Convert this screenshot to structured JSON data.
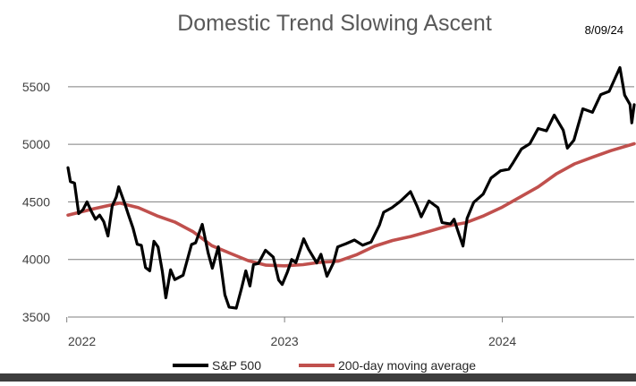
{
  "chart_data": {
    "type": "line",
    "title": "Domestic Trend Slowing Ascent",
    "date_label": "8/09/24",
    "xlabel": "",
    "ylabel": "",
    "xlim": [
      "2022-01-03",
      "2024-08-09"
    ],
    "ylim": [
      3500,
      5600
    ],
    "yticks": [
      3500,
      4000,
      4500,
      5000,
      5500
    ],
    "xtick_labels": [
      "2022",
      "2023",
      "2024"
    ],
    "grid": "horizontal",
    "legend_position": "bottom",
    "colors": {
      "sp500": "#000000",
      "ma200": "#c0504d",
      "grid": "#7f7f7f"
    },
    "series": [
      {
        "name": "S&P 500",
        "x": [
          "2022-01-03",
          "2022-01-07",
          "2022-01-14",
          "2022-01-21",
          "2022-01-28",
          "2022-02-04",
          "2022-02-11",
          "2022-02-18",
          "2022-02-25",
          "2022-03-04",
          "2022-03-11",
          "2022-03-18",
          "2022-03-25",
          "2022-03-29",
          "2022-04-08",
          "2022-04-14",
          "2022-04-22",
          "2022-04-29",
          "2022-05-06",
          "2022-05-13",
          "2022-05-20",
          "2022-05-27",
          "2022-06-03",
          "2022-06-10",
          "2022-06-16",
          "2022-06-24",
          "2022-07-01",
          "2022-07-15",
          "2022-07-29",
          "2022-08-05",
          "2022-08-16",
          "2022-08-26",
          "2022-09-02",
          "2022-09-12",
          "2022-09-23",
          "2022-09-30",
          "2022-10-12",
          "2022-10-21",
          "2022-10-28",
          "2022-11-04",
          "2022-11-10",
          "2022-11-18",
          "2022-11-30",
          "2022-12-13",
          "2022-12-22",
          "2022-12-28",
          "2023-01-06",
          "2023-01-13",
          "2023-01-20",
          "2023-02-02",
          "2023-02-10",
          "2023-02-24",
          "2023-03-03",
          "2023-03-13",
          "2023-03-24",
          "2023-03-31",
          "2023-04-14",
          "2023-04-28",
          "2023-05-12",
          "2023-05-26",
          "2023-06-09",
          "2023-06-16",
          "2023-06-30",
          "2023-07-14",
          "2023-07-31",
          "2023-08-11",
          "2023-08-18",
          "2023-08-31",
          "2023-09-15",
          "2023-09-22",
          "2023-10-06",
          "2023-10-12",
          "2023-10-20",
          "2023-10-27",
          "2023-11-03",
          "2023-11-14",
          "2023-11-30",
          "2023-12-13",
          "2023-12-29",
          "2024-01-12",
          "2024-01-19",
          "2024-02-02",
          "2024-02-16",
          "2024-03-01",
          "2024-03-15",
          "2024-03-28",
          "2024-04-12",
          "2024-04-19",
          "2024-04-30",
          "2024-05-15",
          "2024-05-31",
          "2024-06-14",
          "2024-06-28",
          "2024-07-16",
          "2024-07-24",
          "2024-08-02",
          "2024-08-05",
          "2024-08-09"
        ],
        "values": [
          4797,
          4677,
          4663,
          4398,
          4432,
          4500,
          4419,
          4349,
          4385,
          4328,
          4204,
          4463,
          4543,
          4632,
          4488,
          4392,
          4272,
          4132,
          4123,
          3930,
          3901,
          4158,
          4108,
          3900,
          3667,
          3911,
          3825,
          3863,
          4130,
          4145,
          4305,
          4057,
          3924,
          4110,
          3693,
          3586,
          3577,
          3752,
          3901,
          3770,
          3956,
          3965,
          4080,
          4020,
          3822,
          3783,
          3895,
          3999,
          3972,
          4179,
          4090,
          3970,
          4045,
          3855,
          3971,
          4109,
          4137,
          4169,
          4124,
          4151,
          4299,
          4410,
          4450,
          4505,
          4589,
          4464,
          4370,
          4508,
          4450,
          4320,
          4308,
          4349,
          4224,
          4117,
          4358,
          4496,
          4568,
          4707,
          4770,
          4784,
          4840,
          4959,
          5005,
          5137,
          5117,
          5254,
          5123,
          4967,
          5036,
          5308,
          5278,
          5432,
          5460,
          5667,
          5427,
          5346,
          5186,
          5344
        ]
      },
      {
        "name": "200-day moving average",
        "x": [
          "2022-01-03",
          "2022-02-15",
          "2022-03-31",
          "2022-05-01",
          "2022-06-01",
          "2022-07-01",
          "2022-08-01",
          "2022-09-01",
          "2022-10-01",
          "2022-11-01",
          "2022-12-01",
          "2023-01-01",
          "2023-02-01",
          "2023-03-01",
          "2023-04-01",
          "2023-05-01",
          "2023-06-01",
          "2023-07-01",
          "2023-08-01",
          "2023-09-01",
          "2023-10-01",
          "2023-11-01",
          "2023-12-01",
          "2024-01-01",
          "2024-02-01",
          "2024-03-01",
          "2024-04-01",
          "2024-05-01",
          "2024-06-01",
          "2024-07-01",
          "2024-08-09"
        ],
        "values": [
          4385,
          4440,
          4490,
          4450,
          4380,
          4325,
          4240,
          4120,
          4055,
          3990,
          3950,
          3945,
          3955,
          3975,
          3985,
          4040,
          4115,
          4165,
          4200,
          4245,
          4290,
          4320,
          4380,
          4455,
          4545,
          4630,
          4745,
          4830,
          4890,
          4945,
          5005
        ]
      }
    ]
  }
}
